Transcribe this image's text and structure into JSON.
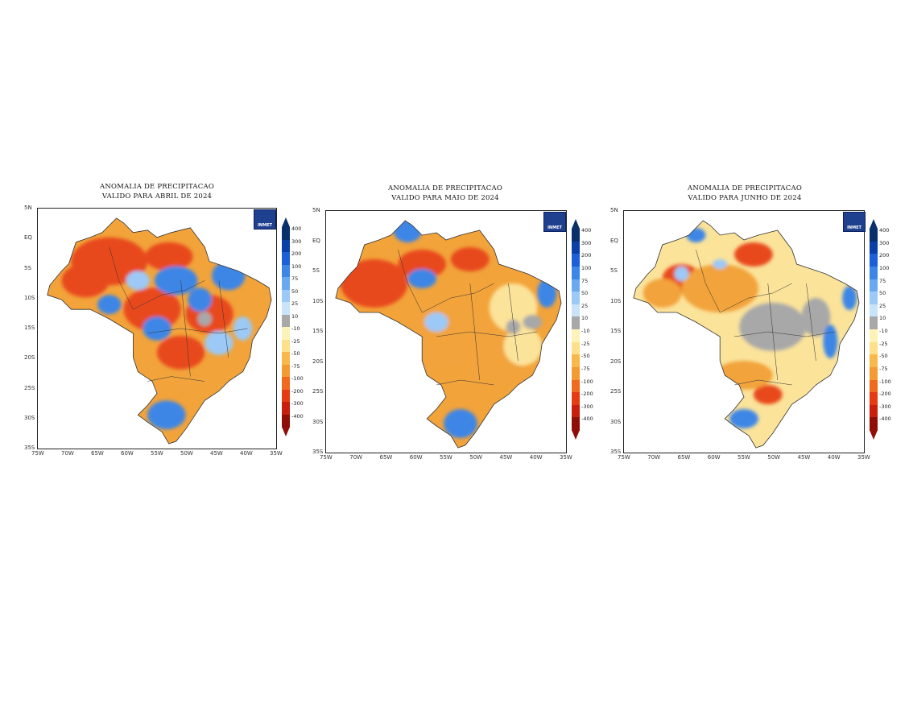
{
  "panels": [
    {
      "title_line1": "ANOMALIA DE PRECIPITACAO",
      "title_line2": "VALIDO PARA ABRIL DE 2024",
      "dominant": "red",
      "secondary": "blue"
    },
    {
      "title_line1": "ANOMALIA DE PRECIPITACAO",
      "title_line2": "VALIDO PARA MAIO DE 2024",
      "dominant": "orange",
      "secondary": "blue"
    },
    {
      "title_line1": "ANOMALIA DE PRECIPITACAO",
      "title_line2": "VALIDO PARA JUNHO DE 2024",
      "dominant": "yellow",
      "secondary": "gray"
    }
  ],
  "logo_text": "INMET",
  "lat_labels": [
    "5N",
    "EQ",
    "5S",
    "10S",
    "15S",
    "20S",
    "25S",
    "30S",
    "35S"
  ],
  "lon_labels": [
    "75W",
    "70W",
    "65W",
    "60W",
    "55W",
    "50W",
    "45W",
    "40W",
    "35W"
  ],
  "colorbar": {
    "labels": [
      "400",
      "300",
      "200",
      "100",
      "75",
      "50",
      "25",
      "10",
      "-10",
      "-25",
      "-50",
      "-75",
      "-100",
      "-200",
      "-300",
      "-400"
    ],
    "colors": [
      "#08306b",
      "#0b3fa8",
      "#1d5fd6",
      "#3c86e6",
      "#6aa9ef",
      "#9cc9f5",
      "#c8e3fa",
      "#a8a8a8",
      "#fdf3b8",
      "#fde08a",
      "#f9b84c",
      "#f49a32",
      "#ef6a1e",
      "#e63b12",
      "#c81e0e",
      "#8f0f08"
    ]
  },
  "palette": {
    "red": "#e8481c",
    "orange": "#f2a33a",
    "yellow": "#fbe39a",
    "blue": "#3c86e6",
    "lightblue": "#9cc9f5",
    "gray": "#a8a8a8"
  }
}
